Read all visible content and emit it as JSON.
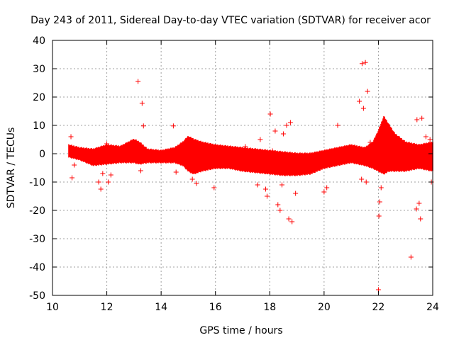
{
  "chart_data": {
    "type": "scatter",
    "title": "Day 243 of 2011, Sidereal Day-to-day VTEC variation (SDTVAR) for receiver acor",
    "xlabel": "GPS time / hours",
    "ylabel": "SDTVAR / TECUs",
    "xlim": [
      10,
      24
    ],
    "ylim": [
      -50,
      40
    ],
    "xticks": [
      10,
      12,
      14,
      16,
      18,
      20,
      22,
      24
    ],
    "yticks": [
      -50,
      -40,
      -30,
      -20,
      -10,
      0,
      10,
      20,
      30,
      40
    ],
    "grid": true,
    "marker": "+",
    "color": "#ff0000",
    "series": [
      {
        "name": "SDTVAR",
        "band_profile": {
          "x": [
            10.6,
            11.0,
            11.5,
            12.0,
            12.5,
            13.0,
            13.2,
            13.5,
            14.0,
            14.5,
            14.8,
            15.0,
            15.2,
            15.5,
            16.0,
            16.5,
            17.0,
            17.5,
            18.0,
            18.5,
            19.0,
            19.5,
            20.0,
            20.5,
            21.0,
            21.5,
            21.8,
            22.0,
            22.2,
            22.4,
            22.6,
            23.0,
            23.5,
            24.0
          ],
          "upper": [
            3,
            2,
            1.5,
            3,
            2.5,
            5,
            4,
            1.5,
            1,
            2,
            4,
            6,
            5,
            4,
            3,
            2.5,
            2,
            1.5,
            1,
            0.5,
            0,
            0,
            1,
            2,
            3,
            2,
            4,
            8,
            13,
            10,
            7,
            4,
            3,
            4
          ],
          "lower": [
            -1,
            -2,
            -4,
            -3.5,
            -3,
            -3,
            -3.5,
            -3,
            -3,
            -3,
            -4,
            -6,
            -7,
            -6,
            -5,
            -5,
            -6,
            -6.5,
            -7,
            -7.5,
            -7.5,
            -7,
            -5,
            -4,
            -3,
            -4,
            -5,
            -6,
            -7,
            -6,
            -6,
            -6,
            -5,
            -6
          ]
        },
        "outliers": [
          {
            "x": 10.68,
            "y": 6
          },
          {
            "x": 10.72,
            "y": -8.5
          },
          {
            "x": 10.8,
            "y": -4
          },
          {
            "x": 11.7,
            "y": -10
          },
          {
            "x": 11.78,
            "y": -12.5
          },
          {
            "x": 11.85,
            "y": -7
          },
          {
            "x": 12.0,
            "y": 3.5
          },
          {
            "x": 12.05,
            "y": -10
          },
          {
            "x": 12.15,
            "y": -7.5
          },
          {
            "x": 13.15,
            "y": 25.5
          },
          {
            "x": 13.3,
            "y": 17.8
          },
          {
            "x": 13.35,
            "y": 9.8
          },
          {
            "x": 13.25,
            "y": -6
          },
          {
            "x": 14.45,
            "y": 9.8
          },
          {
            "x": 14.55,
            "y": -6.5
          },
          {
            "x": 15.15,
            "y": -9
          },
          {
            "x": 15.3,
            "y": -10.5
          },
          {
            "x": 15.95,
            "y": -12
          },
          {
            "x": 17.1,
            "y": 2.5
          },
          {
            "x": 17.2,
            "y": 0.5
          },
          {
            "x": 17.55,
            "y": -11
          },
          {
            "x": 17.65,
            "y": 5
          },
          {
            "x": 17.85,
            "y": -12.5
          },
          {
            "x": 17.9,
            "y": -15
          },
          {
            "x": 18.02,
            "y": 14
          },
          {
            "x": 18.1,
            "y": 1
          },
          {
            "x": 18.2,
            "y": 8
          },
          {
            "x": 18.3,
            "y": -18
          },
          {
            "x": 18.38,
            "y": -20
          },
          {
            "x": 18.45,
            "y": -11
          },
          {
            "x": 18.5,
            "y": 7
          },
          {
            "x": 18.62,
            "y": 10
          },
          {
            "x": 18.7,
            "y": -23
          },
          {
            "x": 18.82,
            "y": -24
          },
          {
            "x": 18.76,
            "y": 11
          },
          {
            "x": 18.95,
            "y": -14
          },
          {
            "x": 20.0,
            "y": -13.5
          },
          {
            "x": 20.1,
            "y": -12
          },
          {
            "x": 20.5,
            "y": 10
          },
          {
            "x": 21.3,
            "y": 18.5
          },
          {
            "x": 21.4,
            "y": 31.8
          },
          {
            "x": 21.52,
            "y": 32.2
          },
          {
            "x": 21.6,
            "y": 22
          },
          {
            "x": 21.45,
            "y": 16
          },
          {
            "x": 21.38,
            "y": -9
          },
          {
            "x": 21.55,
            "y": -10
          },
          {
            "x": 21.7,
            "y": 4
          },
          {
            "x": 22.0,
            "y": -48
          },
          {
            "x": 22.02,
            "y": -22
          },
          {
            "x": 22.05,
            "y": -17
          },
          {
            "x": 22.1,
            "y": -12
          },
          {
            "x": 23.2,
            "y": -36.5
          },
          {
            "x": 23.4,
            "y": -19.5
          },
          {
            "x": 23.5,
            "y": -17.5
          },
          {
            "x": 23.55,
            "y": -23
          },
          {
            "x": 23.42,
            "y": 12
          },
          {
            "x": 23.6,
            "y": 12.5
          },
          {
            "x": 23.75,
            "y": 6
          },
          {
            "x": 23.9,
            "y": 5
          },
          {
            "x": 23.95,
            "y": -10
          }
        ]
      }
    ]
  }
}
